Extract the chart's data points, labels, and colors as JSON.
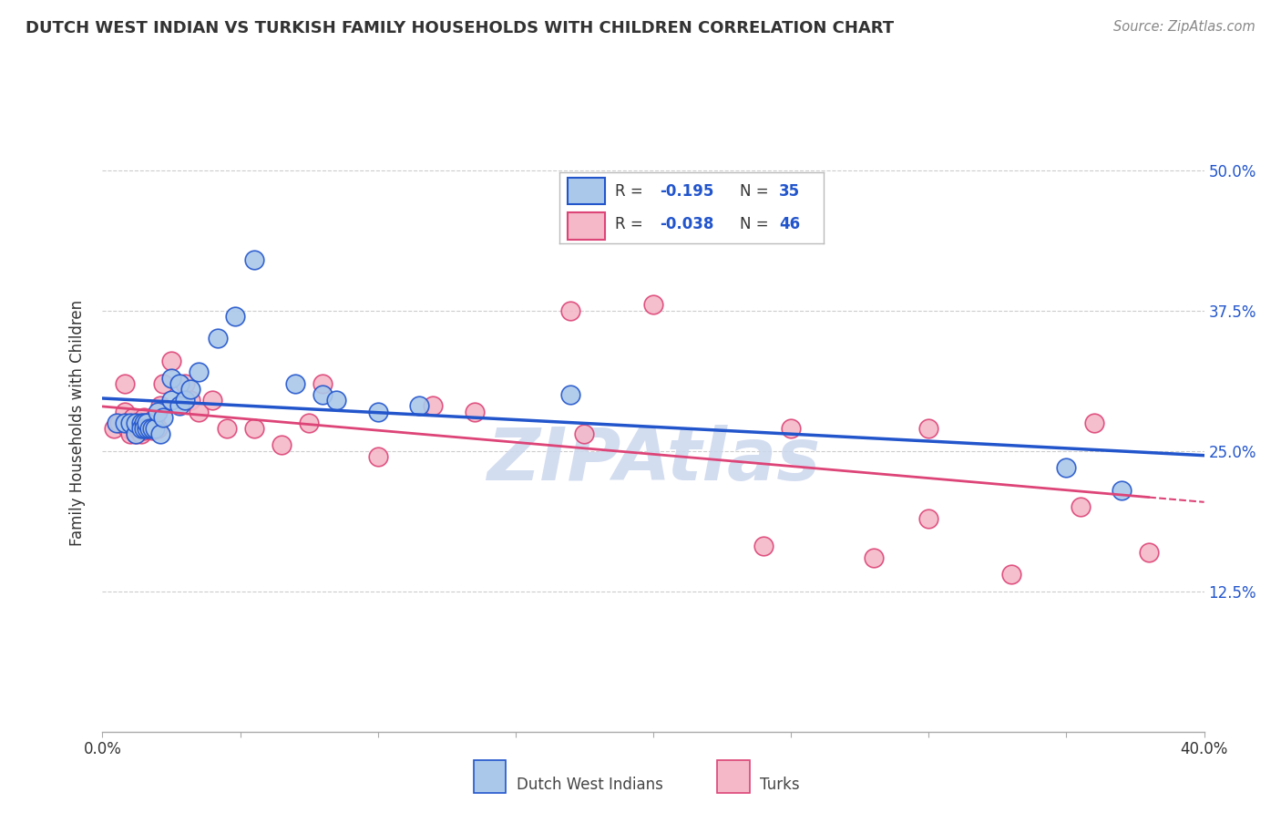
{
  "title": "DUTCH WEST INDIAN VS TURKISH FAMILY HOUSEHOLDS WITH CHILDREN CORRELATION CHART",
  "source": "Source: ZipAtlas.com",
  "ylabel": "Family Households with Children",
  "xmin": 0.0,
  "xmax": 0.4,
  "ymin": 0.0,
  "ymax": 0.55,
  "yticks": [
    0.0,
    0.125,
    0.25,
    0.375,
    0.5
  ],
  "ytick_labels": [
    "",
    "12.5%",
    "25.0%",
    "37.5%",
    "50.0%"
  ],
  "xtick_positions": [
    0.0,
    0.05,
    0.1,
    0.15,
    0.2,
    0.25,
    0.3,
    0.35,
    0.4
  ],
  "xtick_edge_labels": [
    "0.0%",
    "",
    "",
    "",
    "",
    "",
    "",
    "",
    "40.0%"
  ],
  "blue_color": "#aac8ea",
  "pink_color": "#f4b8c8",
  "trend_blue": "#2255cc",
  "trend_pink": "#dd4477",
  "grid_color": "#cccccc",
  "dutch_west_indian_x": [
    0.005,
    0.008,
    0.01,
    0.012,
    0.012,
    0.014,
    0.014,
    0.015,
    0.015,
    0.016,
    0.016,
    0.017,
    0.018,
    0.019,
    0.02,
    0.021,
    0.022,
    0.025,
    0.025,
    0.028,
    0.028,
    0.03,
    0.032,
    0.035,
    0.042,
    0.048,
    0.055,
    0.07,
    0.08,
    0.085,
    0.1,
    0.115,
    0.17,
    0.35,
    0.37
  ],
  "dutch_west_indian_y": [
    0.275,
    0.275,
    0.275,
    0.265,
    0.275,
    0.275,
    0.27,
    0.275,
    0.27,
    0.27,
    0.275,
    0.27,
    0.27,
    0.27,
    0.285,
    0.265,
    0.28,
    0.295,
    0.315,
    0.29,
    0.31,
    0.295,
    0.305,
    0.32,
    0.35,
    0.37,
    0.42,
    0.31,
    0.3,
    0.295,
    0.285,
    0.29,
    0.3,
    0.235,
    0.215
  ],
  "turkish_x": [
    0.004,
    0.006,
    0.008,
    0.008,
    0.009,
    0.01,
    0.011,
    0.012,
    0.012,
    0.013,
    0.014,
    0.014,
    0.015,
    0.015,
    0.016,
    0.017,
    0.018,
    0.019,
    0.02,
    0.021,
    0.022,
    0.025,
    0.03,
    0.032,
    0.035,
    0.04,
    0.045,
    0.055,
    0.065,
    0.075,
    0.08,
    0.1,
    0.12,
    0.135,
    0.17,
    0.175,
    0.2,
    0.24,
    0.25,
    0.28,
    0.3,
    0.3,
    0.33,
    0.355,
    0.36,
    0.38
  ],
  "turkish_y": [
    0.27,
    0.275,
    0.285,
    0.31,
    0.27,
    0.265,
    0.28,
    0.265,
    0.275,
    0.268,
    0.27,
    0.265,
    0.268,
    0.28,
    0.275,
    0.27,
    0.268,
    0.28,
    0.27,
    0.29,
    0.31,
    0.33,
    0.31,
    0.295,
    0.285,
    0.295,
    0.27,
    0.27,
    0.255,
    0.275,
    0.31,
    0.245,
    0.29,
    0.285,
    0.375,
    0.265,
    0.38,
    0.165,
    0.27,
    0.155,
    0.19,
    0.27,
    0.14,
    0.2,
    0.275,
    0.16
  ],
  "bg_color": "#ffffff",
  "watermark": "ZIPAtlas",
  "watermark_color": "#ccd8ee"
}
